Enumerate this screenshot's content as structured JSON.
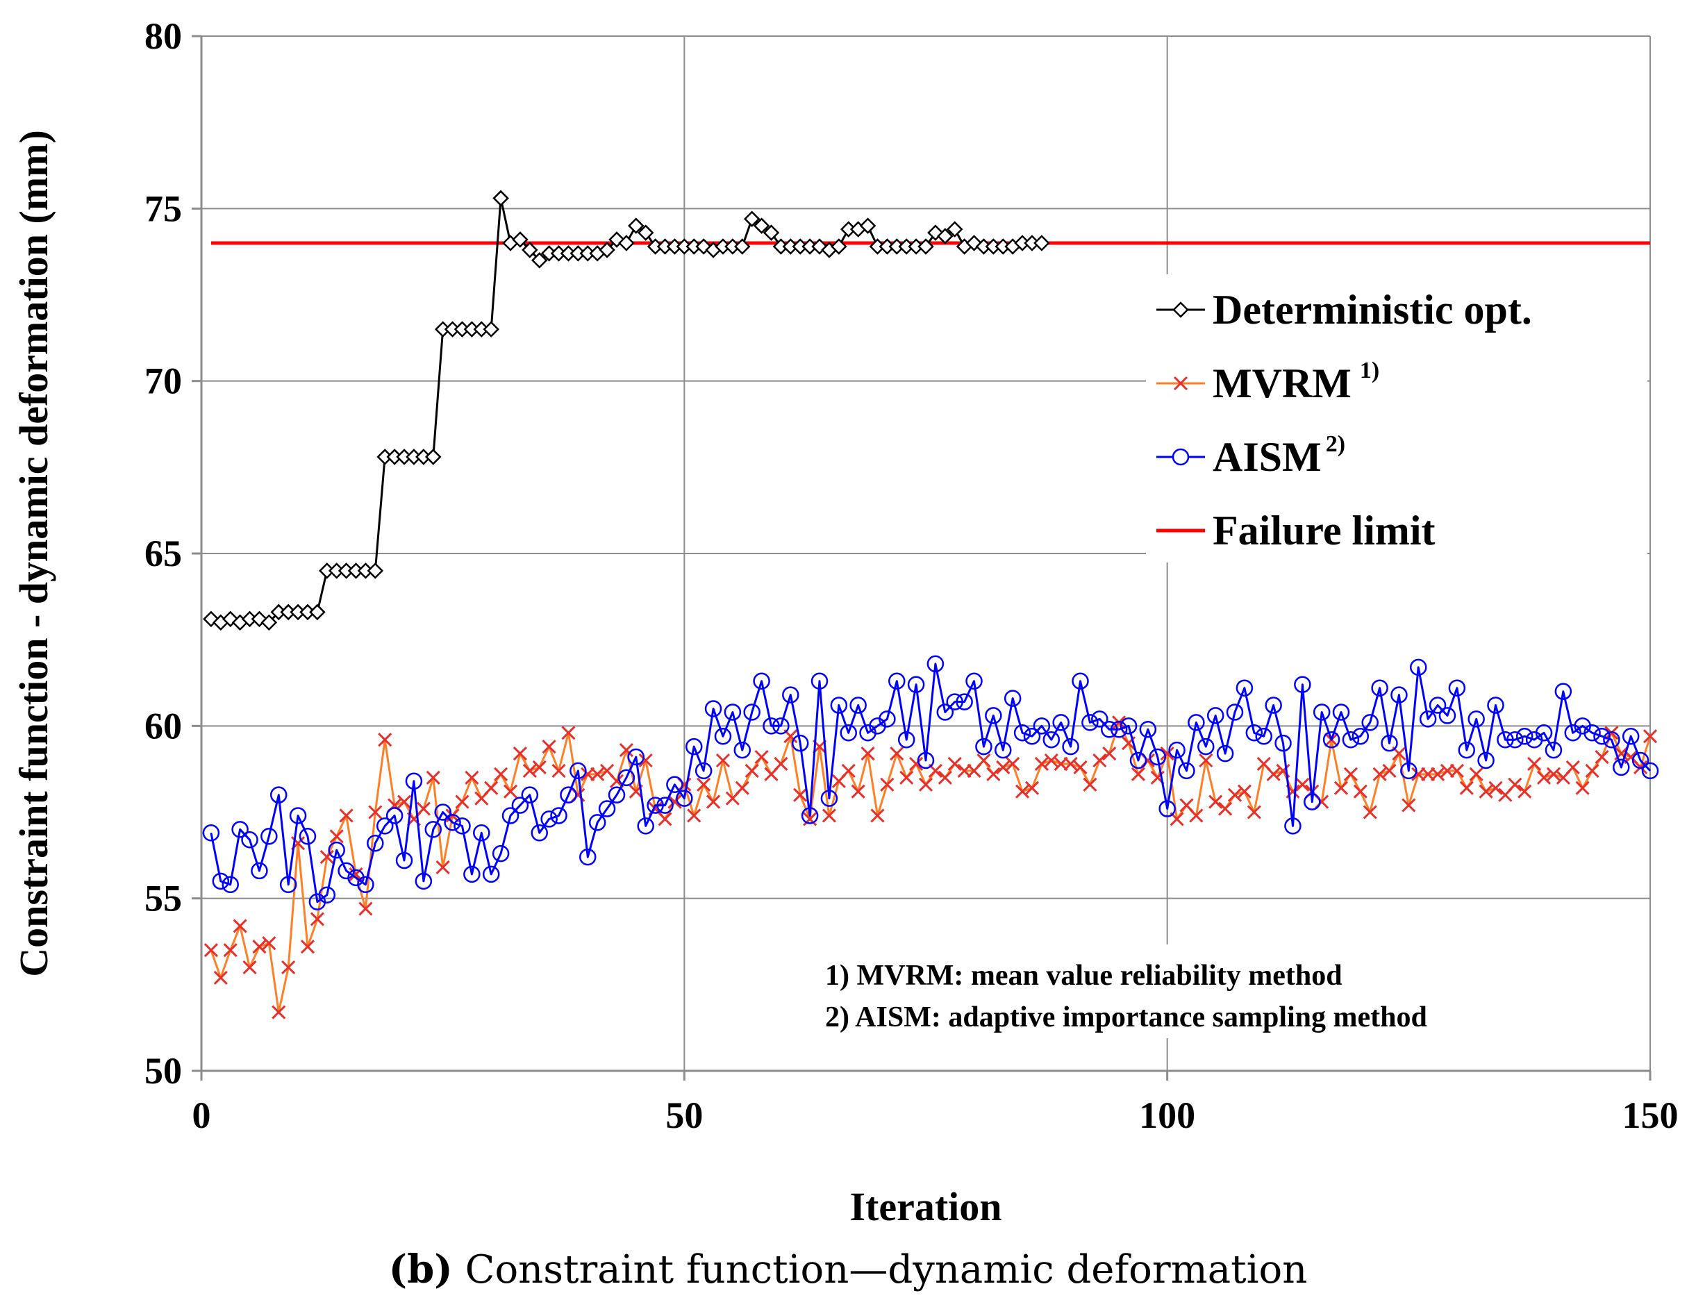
{
  "chart_data": {
    "type": "line",
    "xlabel": "Iteration",
    "ylabel": "Constraint function - dynamic deformation (mm)",
    "xlim": [
      0,
      150
    ],
    "ylim": [
      50,
      80
    ],
    "xticks": [
      0,
      50,
      100,
      150
    ],
    "yticks": [
      50,
      55,
      60,
      65,
      70,
      75,
      80
    ],
    "grid": true,
    "legend_position": "top-right",
    "series": [
      {
        "name": "Deterministic opt.",
        "color": "#000000",
        "marker": "diamond",
        "x_start": 1,
        "values": [
          63.1,
          63.0,
          63.1,
          63.0,
          63.1,
          63.1,
          63.0,
          63.3,
          63.3,
          63.3,
          63.3,
          63.3,
          64.5,
          64.5,
          64.5,
          64.5,
          64.5,
          64.5,
          67.8,
          67.8,
          67.8,
          67.8,
          67.8,
          67.8,
          71.5,
          71.5,
          71.5,
          71.5,
          71.5,
          71.5,
          75.3,
          74.0,
          74.1,
          73.8,
          73.5,
          73.7,
          73.7,
          73.7,
          73.7,
          73.7,
          73.7,
          73.8,
          74.1,
          74.0,
          74.5,
          74.3,
          73.9,
          73.9,
          73.9,
          73.9,
          73.9,
          73.9,
          73.8,
          73.9,
          73.9,
          73.9,
          74.7,
          74.5,
          74.3,
          73.9,
          73.9,
          73.9,
          73.9,
          73.9,
          73.8,
          73.9,
          74.4,
          74.4,
          74.5,
          73.9,
          73.9,
          73.9,
          73.9,
          73.9,
          73.9,
          74.3,
          74.2,
          74.4,
          73.9,
          74.0,
          73.9,
          73.9,
          73.9,
          73.9,
          74.0,
          74.0,
          74.0
        ]
      },
      {
        "name": "MVRM",
        "sup": "1)",
        "color": "#FF7F27",
        "marker": "x",
        "x_start": 1,
        "values": [
          53.5,
          52.7,
          53.5,
          54.2,
          53.0,
          53.6,
          53.7,
          51.7,
          53.0,
          56.6,
          53.6,
          54.4,
          56.2,
          56.8,
          57.4,
          55.7,
          54.7,
          57.5,
          59.6,
          57.7,
          57.8,
          57.3,
          57.6,
          58.5,
          55.9,
          57.4,
          57.8,
          58.5,
          57.9,
          58.2,
          58.6,
          58.1,
          59.2,
          58.7,
          58.8,
          59.4,
          58.7,
          59.8,
          58.0,
          58.6,
          58.6,
          58.7,
          58.4,
          59.3,
          58.1,
          59.0,
          57.6,
          57.3,
          57.8,
          58.3,
          57.4,
          58.3,
          57.8,
          59.0,
          57.9,
          58.2,
          58.7,
          59.1,
          58.6,
          58.9,
          59.7,
          58.0,
          57.3,
          59.4,
          57.4,
          58.4,
          58.7,
          58.1,
          59.2,
          57.4,
          58.3,
          59.2,
          58.5,
          58.9,
          58.3,
          58.7,
          58.5,
          58.9,
          58.7,
          58.7,
          59.0,
          58.6,
          58.8,
          58.9,
          58.1,
          58.2,
          58.9,
          59.0,
          58.9,
          58.9,
          58.8,
          58.3,
          59.0,
          59.2,
          60.1,
          59.5,
          58.6,
          59.0,
          58.5,
          59.2,
          57.3,
          57.7,
          57.4,
          59.0,
          57.8,
          57.6,
          58.0,
          58.1,
          57.5,
          58.9,
          58.6,
          58.7,
          58.1,
          58.3,
          58.1,
          57.8,
          59.6,
          58.2,
          58.6,
          58.1,
          57.5,
          58.6,
          58.7,
          59.2,
          57.7,
          58.6,
          58.6,
          58.6,
          58.7,
          58.7,
          58.2,
          58.6,
          58.1,
          58.2,
          58.0,
          58.3,
          58.1,
          58.9,
          58.5,
          58.6,
          58.5,
          58.8,
          58.2,
          58.7,
          59.1,
          59.8,
          59.2,
          59.1,
          58.8,
          59.7
        ]
      },
      {
        "name": "AISM",
        "sup": "2)",
        "color": "#0000FF",
        "marker": "circle",
        "x_start": 1,
        "values": [
          56.9,
          55.5,
          55.4,
          57.0,
          56.7,
          55.8,
          56.8,
          58.0,
          55.4,
          57.4,
          56.8,
          54.9,
          55.1,
          56.4,
          55.8,
          55.6,
          55.4,
          56.6,
          57.1,
          57.4,
          56.1,
          58.4,
          55.5,
          57.0,
          57.5,
          57.2,
          57.1,
          55.7,
          56.9,
          55.7,
          56.3,
          57.4,
          57.7,
          58.0,
          56.9,
          57.3,
          57.4,
          58.0,
          58.7,
          56.2,
          57.2,
          57.6,
          58.0,
          58.5,
          59.1,
          57.1,
          57.7,
          57.7,
          58.3,
          57.9,
          59.4,
          58.7,
          60.5,
          59.7,
          60.4,
          59.3,
          60.4,
          61.3,
          60.0,
          60.0,
          60.9,
          59.5,
          57.4,
          61.3,
          57.9,
          60.6,
          59.8,
          60.6,
          59.8,
          60.0,
          60.2,
          61.3,
          59.6,
          61.2,
          59.0,
          61.8,
          60.4,
          60.7,
          60.7,
          61.3,
          59.4,
          60.3,
          59.3,
          60.8,
          59.8,
          59.7,
          60.0,
          59.6,
          60.1,
          59.4,
          61.3,
          60.1,
          60.2,
          59.9,
          59.9,
          60.0,
          59.0,
          59.9,
          59.1,
          57.6,
          59.3,
          58.7,
          60.1,
          59.4,
          60.3,
          59.2,
          60.4,
          61.1,
          59.8,
          59.7,
          60.6,
          59.5,
          57.1,
          61.2,
          57.8,
          60.4,
          59.6,
          60.4,
          59.6,
          59.7,
          60.1,
          61.1,
          59.5,
          60.9,
          58.7,
          61.7,
          60.2,
          60.6,
          60.3,
          61.1,
          59.3,
          60.2,
          59.0,
          60.6,
          59.6,
          59.6,
          59.7,
          59.6,
          59.8,
          59.3,
          61.0,
          59.8,
          60.0,
          59.8,
          59.7,
          59.6,
          58.8,
          59.7,
          59.0,
          58.7
        ]
      },
      {
        "name": "Failure limit",
        "color": "#FF0000",
        "marker": "none",
        "x": [
          1,
          150
        ],
        "values": [
          74.0,
          74.0
        ]
      }
    ],
    "notes": [
      "1) MVRM: mean value reliability method",
      "2) AISM: adaptive importance sampling method"
    ]
  },
  "caption": {
    "label": "(b)",
    "text": " Constraint function—dynamic deformation"
  }
}
